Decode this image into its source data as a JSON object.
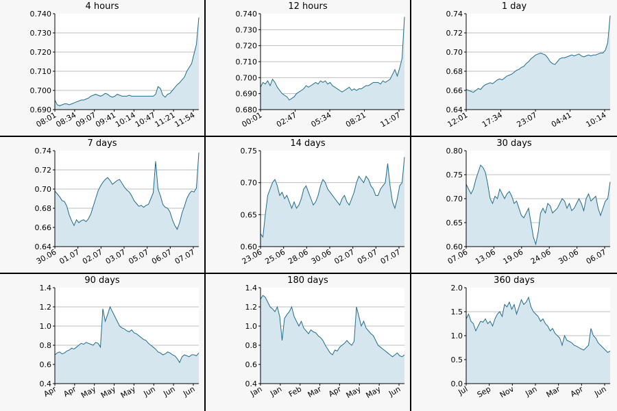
{
  "colors": {
    "line": "#1f6b8a",
    "fill": "#d6e6ef",
    "grid": "#bdbdbd",
    "panel_bg": "#f7f7f7",
    "plot_bg": "#ffffff"
  },
  "chart_data": [
    {
      "type": "area",
      "title": "4 hours",
      "ylim": [
        0.69,
        0.74
      ],
      "yticks": [
        "0.690",
        "0.700",
        "0.710",
        "0.720",
        "0.730",
        "0.740"
      ],
      "xticks": [
        "08:01",
        "08:34",
        "09:07",
        "09:41",
        "10:14",
        "10:47",
        "11:21",
        "11:54"
      ],
      "x": [
        0,
        1,
        2,
        3,
        4,
        5,
        6,
        7,
        8,
        9,
        10,
        11,
        12,
        13,
        14,
        15,
        16,
        17,
        18,
        19,
        20,
        21,
        22,
        23,
        24,
        25,
        26,
        27,
        28,
        29,
        30,
        31,
        32,
        33,
        34,
        35,
        36,
        37,
        38,
        39,
        40,
        41,
        42,
        43,
        44,
        45,
        46,
        47,
        48,
        49,
        50,
        51,
        52,
        53,
        54,
        55,
        56,
        57,
        58,
        59,
        60
      ],
      "y": [
        0.695,
        0.6925,
        0.692,
        0.6925,
        0.693,
        0.693,
        0.6925,
        0.693,
        0.6935,
        0.694,
        0.6945,
        0.695,
        0.695,
        0.6955,
        0.696,
        0.697,
        0.6975,
        0.698,
        0.6975,
        0.697,
        0.6975,
        0.6985,
        0.698,
        0.697,
        0.6965,
        0.697,
        0.698,
        0.6975,
        0.697,
        0.697,
        0.697,
        0.6975,
        0.697,
        0.697,
        0.697,
        0.697,
        0.697,
        0.697,
        0.697,
        0.697,
        0.697,
        0.697,
        0.698,
        0.702,
        0.701,
        0.6975,
        0.6965,
        0.698,
        0.6985,
        0.7,
        0.7015,
        0.703,
        0.704,
        0.7055,
        0.707,
        0.71,
        0.712,
        0.714,
        0.719,
        0.724,
        0.738
      ]
    },
    {
      "type": "area",
      "title": "12 hours",
      "ylim": [
        0.68,
        0.74
      ],
      "yticks": [
        "0.680",
        "0.690",
        "0.700",
        "0.710",
        "0.720",
        "0.730",
        "0.740"
      ],
      "xticks": [
        "00:01",
        "02:47",
        "05:34",
        "08:21",
        "11:07"
      ],
      "x": [
        0,
        1,
        2,
        3,
        4,
        5,
        6,
        7,
        8,
        9,
        10,
        11,
        12,
        13,
        14,
        15,
        16,
        17,
        18,
        19,
        20,
        21,
        22,
        23,
        24,
        25,
        26,
        27,
        28,
        29,
        30,
        31,
        32,
        33,
        34,
        35,
        36,
        37,
        38,
        39,
        40,
        41,
        42,
        43,
        44,
        45,
        46,
        47,
        48,
        49,
        50,
        51,
        52,
        53,
        54,
        55,
        56,
        57,
        58,
        59,
        60
      ],
      "y": [
        0.694,
        0.697,
        0.696,
        0.698,
        0.695,
        0.699,
        0.697,
        0.694,
        0.692,
        0.69,
        0.689,
        0.688,
        0.686,
        0.687,
        0.688,
        0.69,
        0.691,
        0.692,
        0.693,
        0.695,
        0.694,
        0.695,
        0.696,
        0.697,
        0.696,
        0.698,
        0.697,
        0.698,
        0.696,
        0.697,
        0.695,
        0.694,
        0.693,
        0.692,
        0.691,
        0.692,
        0.693,
        0.694,
        0.692,
        0.693,
        0.692,
        0.693,
        0.693,
        0.694,
        0.695,
        0.695,
        0.696,
        0.697,
        0.697,
        0.697,
        0.696,
        0.698,
        0.697,
        0.698,
        0.699,
        0.702,
        0.705,
        0.701,
        0.706,
        0.712,
        0.738
      ]
    },
    {
      "type": "area",
      "title": "1 day",
      "ylim": [
        0.64,
        0.74
      ],
      "yticks": [
        "0.64",
        "0.66",
        "0.68",
        "0.70",
        "0.72",
        "0.74"
      ],
      "xticks": [
        "12:01",
        "17:34",
        "23:07",
        "04:41",
        "10:14"
      ],
      "x": [
        0,
        1,
        2,
        3,
        4,
        5,
        6,
        7,
        8,
        9,
        10,
        11,
        12,
        13,
        14,
        15,
        16,
        17,
        18,
        19,
        20,
        21,
        22,
        23,
        24,
        25,
        26,
        27,
        28,
        29,
        30,
        31,
        32,
        33,
        34,
        35,
        36,
        37,
        38,
        39,
        40,
        41,
        42,
        43,
        44,
        45,
        46,
        47,
        48,
        49,
        50,
        51,
        52,
        53,
        54,
        55,
        56,
        57,
        58,
        59,
        60
      ],
      "y": [
        0.661,
        0.66,
        0.659,
        0.658,
        0.66,
        0.662,
        0.661,
        0.664,
        0.666,
        0.667,
        0.668,
        0.667,
        0.669,
        0.671,
        0.672,
        0.671,
        0.673,
        0.675,
        0.676,
        0.677,
        0.679,
        0.681,
        0.682,
        0.684,
        0.685,
        0.688,
        0.69,
        0.693,
        0.695,
        0.697,
        0.698,
        0.699,
        0.698,
        0.697,
        0.694,
        0.69,
        0.688,
        0.687,
        0.69,
        0.693,
        0.694,
        0.694,
        0.695,
        0.696,
        0.697,
        0.696,
        0.697,
        0.698,
        0.696,
        0.695,
        0.696,
        0.697,
        0.696,
        0.697,
        0.697,
        0.698,
        0.699,
        0.699,
        0.702,
        0.71,
        0.738
      ]
    },
    {
      "type": "area",
      "title": "7 days",
      "ylim": [
        0.64,
        0.74
      ],
      "yticks": [
        "0.64",
        "0.66",
        "0.68",
        "0.70",
        "0.72",
        "0.74"
      ],
      "xticks": [
        "30.06",
        "01.07",
        "02.07",
        "03.07",
        "05.07",
        "06.07",
        "07.07"
      ],
      "x": [
        0,
        1,
        2,
        3,
        4,
        5,
        6,
        7,
        8,
        9,
        10,
        11,
        12,
        13,
        14,
        15,
        16,
        17,
        18,
        19,
        20,
        21,
        22,
        23,
        24,
        25,
        26,
        27,
        28,
        29,
        30,
        31,
        32,
        33,
        34,
        35,
        36,
        37,
        38,
        39,
        40,
        41,
        42,
        43,
        44,
        45,
        46,
        47,
        48,
        49,
        50,
        51,
        52,
        53,
        54,
        55,
        56,
        57,
        58,
        59,
        60
      ],
      "y": [
        0.698,
        0.695,
        0.692,
        0.688,
        0.687,
        0.682,
        0.673,
        0.667,
        0.662,
        0.668,
        0.665,
        0.667,
        0.668,
        0.666,
        0.669,
        0.674,
        0.682,
        0.69,
        0.698,
        0.703,
        0.707,
        0.71,
        0.712,
        0.709,
        0.705,
        0.707,
        0.709,
        0.71,
        0.706,
        0.702,
        0.699,
        0.697,
        0.693,
        0.688,
        0.685,
        0.682,
        0.683,
        0.681,
        0.683,
        0.684,
        0.69,
        0.696,
        0.729,
        0.7,
        0.693,
        0.684,
        0.681,
        0.68,
        0.676,
        0.668,
        0.662,
        0.658,
        0.665,
        0.675,
        0.682,
        0.69,
        0.695,
        0.698,
        0.697,
        0.701,
        0.738
      ]
    },
    {
      "type": "area",
      "title": "14 days",
      "ylim": [
        0.6,
        0.75
      ],
      "yticks": [
        "0.60",
        "0.65",
        "0.70",
        "0.75"
      ],
      "xticks": [
        "23.06",
        "25.06",
        "28.06",
        "30.06",
        "02.07",
        "05.07",
        "07.07"
      ],
      "x": [
        0,
        1,
        2,
        3,
        4,
        5,
        6,
        7,
        8,
        9,
        10,
        11,
        12,
        13,
        14,
        15,
        16,
        17,
        18,
        19,
        20,
        21,
        22,
        23,
        24,
        25,
        26,
        27,
        28,
        29,
        30,
        31,
        32,
        33,
        34,
        35,
        36,
        37,
        38,
        39,
        40,
        41,
        42,
        43,
        44,
        45,
        46,
        47,
        48,
        49,
        50,
        51,
        52,
        53,
        54,
        55,
        56,
        57,
        58,
        59,
        60
      ],
      "y": [
        0.62,
        0.615,
        0.65,
        0.68,
        0.69,
        0.7,
        0.705,
        0.695,
        0.68,
        0.685,
        0.675,
        0.68,
        0.67,
        0.66,
        0.67,
        0.66,
        0.665,
        0.675,
        0.69,
        0.695,
        0.685,
        0.675,
        0.665,
        0.67,
        0.68,
        0.695,
        0.705,
        0.7,
        0.69,
        0.685,
        0.68,
        0.675,
        0.67,
        0.665,
        0.675,
        0.68,
        0.67,
        0.665,
        0.675,
        0.685,
        0.7,
        0.71,
        0.705,
        0.7,
        0.71,
        0.705,
        0.695,
        0.69,
        0.68,
        0.68,
        0.69,
        0.695,
        0.7,
        0.73,
        0.695,
        0.67,
        0.66,
        0.675,
        0.695,
        0.7,
        0.74
      ]
    },
    {
      "type": "area",
      "title": "30 days",
      "ylim": [
        0.6,
        0.8
      ],
      "yticks": [
        "0.60",
        "0.65",
        "0.70",
        "0.75",
        "0.80"
      ],
      "xticks": [
        "07.06",
        "13.06",
        "19.06",
        "24.06",
        "30.06",
        "06.07"
      ],
      "x": [
        0,
        1,
        2,
        3,
        4,
        5,
        6,
        7,
        8,
        9,
        10,
        11,
        12,
        13,
        14,
        15,
        16,
        17,
        18,
        19,
        20,
        21,
        22,
        23,
        24,
        25,
        26,
        27,
        28,
        29,
        30,
        31,
        32,
        33,
        34,
        35,
        36,
        37,
        38,
        39,
        40,
        41,
        42,
        43,
        44,
        45,
        46,
        47,
        48,
        49,
        50,
        51,
        52,
        53,
        54,
        55,
        56,
        57,
        58,
        59,
        60
      ],
      "y": [
        0.73,
        0.72,
        0.71,
        0.72,
        0.74,
        0.755,
        0.77,
        0.765,
        0.755,
        0.73,
        0.7,
        0.69,
        0.705,
        0.7,
        0.72,
        0.71,
        0.7,
        0.71,
        0.715,
        0.705,
        0.69,
        0.695,
        0.68,
        0.665,
        0.66,
        0.67,
        0.68,
        0.65,
        0.62,
        0.605,
        0.63,
        0.67,
        0.68,
        0.67,
        0.69,
        0.685,
        0.67,
        0.675,
        0.68,
        0.69,
        0.7,
        0.695,
        0.68,
        0.69,
        0.675,
        0.68,
        0.69,
        0.7,
        0.69,
        0.675,
        0.7,
        0.71,
        0.695,
        0.7,
        0.705,
        0.68,
        0.665,
        0.68,
        0.695,
        0.7,
        0.735
      ]
    },
    {
      "type": "area",
      "title": "90 days",
      "ylim": [
        0.4,
        1.4
      ],
      "yticks": [
        "0.4",
        "0.6",
        "0.8",
        "1.0",
        "1.2",
        "1.4"
      ],
      "xticks": [
        "Apr",
        "Apr",
        "May",
        "May",
        "May",
        "Jun",
        "Jun",
        "Jun"
      ],
      "x": [
        0,
        1,
        2,
        3,
        4,
        5,
        6,
        7,
        8,
        9,
        10,
        11,
        12,
        13,
        14,
        15,
        16,
        17,
        18,
        19,
        20,
        21,
        22,
        23,
        24,
        25,
        26,
        27,
        28,
        29,
        30,
        31,
        32,
        33,
        34,
        35,
        36,
        37,
        38,
        39,
        40,
        41,
        42,
        43,
        44,
        45,
        46,
        47,
        48,
        49,
        50,
        51,
        52,
        53,
        54,
        55,
        56,
        57,
        58,
        59,
        60
      ],
      "y": [
        0.7,
        0.72,
        0.73,
        0.71,
        0.72,
        0.74,
        0.75,
        0.77,
        0.76,
        0.78,
        0.8,
        0.82,
        0.81,
        0.83,
        0.82,
        0.81,
        0.8,
        0.83,
        0.82,
        0.78,
        1.18,
        1.05,
        1.12,
        1.2,
        1.15,
        1.1,
        1.05,
        1.0,
        0.98,
        0.97,
        0.95,
        0.94,
        0.96,
        0.93,
        0.92,
        0.9,
        0.88,
        0.86,
        0.85,
        0.82,
        0.8,
        0.78,
        0.76,
        0.73,
        0.72,
        0.7,
        0.71,
        0.73,
        0.72,
        0.7,
        0.69,
        0.66,
        0.62,
        0.68,
        0.7,
        0.69,
        0.68,
        0.7,
        0.7,
        0.69,
        0.72
      ]
    },
    {
      "type": "area",
      "title": "180 days",
      "ylim": [
        0.4,
        1.4
      ],
      "yticks": [
        "0.4",
        "0.6",
        "0.8",
        "1.0",
        "1.2",
        "1.4"
      ],
      "xticks": [
        "Jan",
        "Jan",
        "Feb",
        "Mar",
        "Apr",
        "May",
        "May",
        "Jun"
      ],
      "x": [
        0,
        1,
        2,
        3,
        4,
        5,
        6,
        7,
        8,
        9,
        10,
        11,
        12,
        13,
        14,
        15,
        16,
        17,
        18,
        19,
        20,
        21,
        22,
        23,
        24,
        25,
        26,
        27,
        28,
        29,
        30,
        31,
        32,
        33,
        34,
        35,
        36,
        37,
        38,
        39,
        40,
        41,
        42,
        43,
        44,
        45,
        46,
        47,
        48,
        49,
        50,
        51,
        52,
        53,
        54,
        55,
        56,
        57,
        58,
        59,
        60
      ],
      "y": [
        1.28,
        1.32,
        1.3,
        1.25,
        1.2,
        1.18,
        1.15,
        1.2,
        1.1,
        0.85,
        1.08,
        1.12,
        1.15,
        1.2,
        1.1,
        1.05,
        1.0,
        1.05,
        0.98,
        0.95,
        0.92,
        0.96,
        0.94,
        0.93,
        0.9,
        0.88,
        0.85,
        0.8,
        0.76,
        0.72,
        0.7,
        0.75,
        0.74,
        0.78,
        0.8,
        0.82,
        0.85,
        0.82,
        0.8,
        0.84,
        1.2,
        1.1,
        1.0,
        1.05,
        0.98,
        0.95,
        0.92,
        0.9,
        0.85,
        0.8,
        0.78,
        0.76,
        0.74,
        0.72,
        0.7,
        0.68,
        0.7,
        0.72,
        0.69,
        0.68,
        0.7
      ]
    },
    {
      "type": "area",
      "title": "360 days",
      "ylim": [
        0.0,
        2.0
      ],
      "yticks": [
        "0.0",
        "0.5",
        "1.0",
        "1.5",
        "2.0"
      ],
      "xticks": [
        "Jul",
        "Sep",
        "Nov",
        "Jan",
        "Mar",
        "Apr",
        "Jun"
      ],
      "x": [
        0,
        1,
        2,
        3,
        4,
        5,
        6,
        7,
        8,
        9,
        10,
        11,
        12,
        13,
        14,
        15,
        16,
        17,
        18,
        19,
        20,
        21,
        22,
        23,
        24,
        25,
        26,
        27,
        28,
        29,
        30,
        31,
        32,
        33,
        34,
        35,
        36,
        37,
        38,
        39,
        40,
        41,
        42,
        43,
        44,
        45,
        46,
        47,
        48,
        49,
        50,
        51,
        52,
        53,
        54,
        55,
        56,
        57,
        58,
        59,
        60
      ],
      "y": [
        1.35,
        1.45,
        1.3,
        1.25,
        1.1,
        1.2,
        1.3,
        1.28,
        1.35,
        1.25,
        1.3,
        1.2,
        1.35,
        1.45,
        1.5,
        1.4,
        1.65,
        1.6,
        1.7,
        1.55,
        1.65,
        1.45,
        1.6,
        1.75,
        1.65,
        1.7,
        1.8,
        1.6,
        1.5,
        1.45,
        1.4,
        1.3,
        1.35,
        1.25,
        1.2,
        1.1,
        1.15,
        1.05,
        1.0,
        0.95,
        0.8,
        1.0,
        0.9,
        0.88,
        0.85,
        0.8,
        0.78,
        0.75,
        0.72,
        0.7,
        0.75,
        0.8,
        1.15,
        1.0,
        0.95,
        0.85,
        0.8,
        0.75,
        0.7,
        0.65,
        0.68
      ]
    }
  ]
}
